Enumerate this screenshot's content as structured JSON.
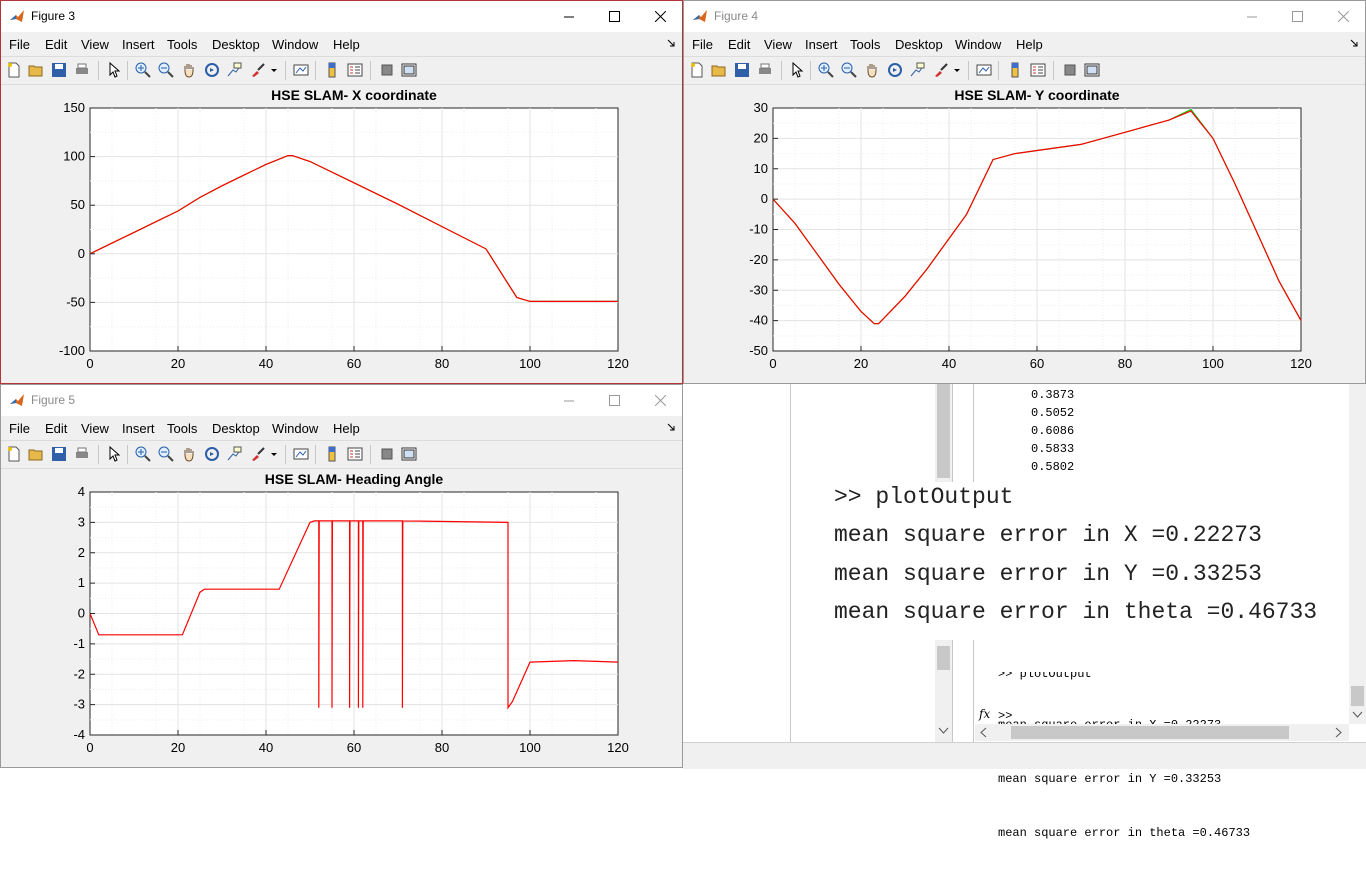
{
  "menus": [
    "File",
    "Edit",
    "View",
    "Insert",
    "Tools",
    "Desktop",
    "Window",
    "Help"
  ],
  "figures": [
    {
      "title": "Figure 3",
      "active": true,
      "axes_title": "HSE SLAM- X coordinate",
      "xticks": [
        "0",
        "20",
        "40",
        "60",
        "80",
        "100",
        "120"
      ],
      "yticks": [
        "150",
        "100",
        "50",
        "0",
        "-50",
        "-100"
      ]
    },
    {
      "title": "Figure 4",
      "active": false,
      "axes_title": "HSE SLAM- Y coordinate",
      "xticks": [
        "0",
        "20",
        "40",
        "60",
        "80",
        "100",
        "120"
      ],
      "yticks": [
        "30",
        "20",
        "10",
        "0",
        "-10",
        "-20",
        "-30",
        "-40",
        "-50"
      ]
    },
    {
      "title": "Figure 5",
      "active": false,
      "axes_title": "HSE SLAM- Heading Angle",
      "xticks": [
        "0",
        "20",
        "40",
        "60",
        "80",
        "100",
        "120"
      ],
      "yticks": [
        "4",
        "3",
        "2",
        "1",
        "0",
        "-1",
        "-2",
        "-3",
        "-4"
      ]
    }
  ],
  "chart_data": [
    {
      "type": "line",
      "title": "HSE SLAM- X coordinate",
      "xlim": [
        0,
        120
      ],
      "ylim": [
        -100,
        150
      ],
      "grid": true,
      "series": [
        {
          "color": "#ff0000",
          "x": [
            0,
            5,
            10,
            15,
            20,
            25,
            30,
            35,
            40,
            45,
            46,
            50,
            60,
            70,
            80,
            90,
            97,
            100,
            110,
            120
          ],
          "y": [
            0,
            11,
            22,
            33,
            44,
            58,
            70,
            81,
            92,
            101,
            101,
            95,
            73,
            51,
            28,
            5,
            -45,
            -49,
            -49,
            -49
          ]
        },
        {
          "color": "#00cc00",
          "x": [
            0,
            5,
            10,
            15,
            20,
            25,
            30,
            35,
            40,
            45,
            46,
            50,
            60,
            70,
            80,
            90,
            97,
            100,
            110,
            120
          ],
          "y": [
            0,
            11,
            22,
            33,
            44,
            58,
            70,
            81,
            92,
            101,
            101,
            95,
            73,
            51,
            28,
            5,
            -45,
            -49,
            -49,
            -49
          ]
        }
      ]
    },
    {
      "type": "line",
      "title": "HSE SLAM- Y coordinate",
      "xlim": [
        0,
        120
      ],
      "ylim": [
        -50,
        30
      ],
      "grid": true,
      "series": [
        {
          "color": "#ff0000",
          "x": [
            0,
            5,
            10,
            15,
            20,
            23,
            24,
            30,
            35,
            40,
            44,
            48,
            50,
            55,
            60,
            70,
            80,
            90,
            95,
            100,
            105,
            110,
            115,
            120
          ],
          "y": [
            0,
            -8,
            -18,
            -28,
            -37,
            -41,
            -41,
            -32,
            -23,
            -13,
            -5,
            7,
            13,
            15,
            16,
            18,
            22,
            26,
            29,
            20,
            5,
            -11,
            -27,
            -40
          ]
        },
        {
          "color": "#00cc00",
          "x": [
            0,
            5,
            10,
            15,
            20,
            23,
            24,
            30,
            35,
            40,
            44,
            48,
            50,
            55,
            60,
            70,
            80,
            90,
            95,
            100,
            105,
            110,
            115,
            120
          ],
          "y": [
            0,
            -8,
            -18,
            -28,
            -37,
            -41,
            -41,
            -32,
            -23,
            -13,
            -5,
            7,
            13,
            15,
            16,
            18,
            22,
            26,
            29.5,
            20,
            5,
            -11,
            -27,
            -40
          ]
        }
      ]
    },
    {
      "type": "line",
      "title": "HSE SLAM- Heading Angle",
      "xlim": [
        0,
        120
      ],
      "ylim": [
        -4,
        4
      ],
      "grid": true,
      "series": [
        {
          "color": "#ff0000",
          "x": [
            0,
            2,
            21,
            25,
            26,
            43,
            50,
            51,
            52,
            52,
            52.1,
            55,
            55,
            55.1,
            59,
            59,
            59.1,
            61,
            61,
            61.1,
            62,
            62,
            62.1,
            71,
            71,
            71.1,
            95,
            95,
            96,
            100,
            110,
            120
          ],
          "y": [
            0,
            -0.7,
            -0.7,
            0.7,
            0.8,
            0.8,
            3,
            3.05,
            3.05,
            -3.1,
            3.05,
            3.05,
            -3.1,
            3.05,
            3.05,
            -3.1,
            3.05,
            3.05,
            -3.1,
            3.05,
            3.05,
            -3.1,
            3.05,
            3.05,
            -3.1,
            3.05,
            3,
            -3.1,
            -2.9,
            -1.6,
            -1.55,
            -1.6
          ]
        }
      ]
    }
  ],
  "command_window": {
    "values": [
      "0.3873",
      "0.5052",
      "0.6086",
      "0.5833",
      "0.5802"
    ],
    "overlay_lines": [
      ">> plotOutput",
      "mean square error in X =0.22273",
      "mean square error in Y =0.33253",
      "mean square error in theta =0.46733"
    ],
    "partial_line": ">> plotOutput",
    "lines": [
      "mean square error in X =0.22273",
      "mean square error in Y =0.33253",
      "mean square error in theta =0.46733"
    ],
    "prompt": ">>",
    "fx": "fx"
  }
}
